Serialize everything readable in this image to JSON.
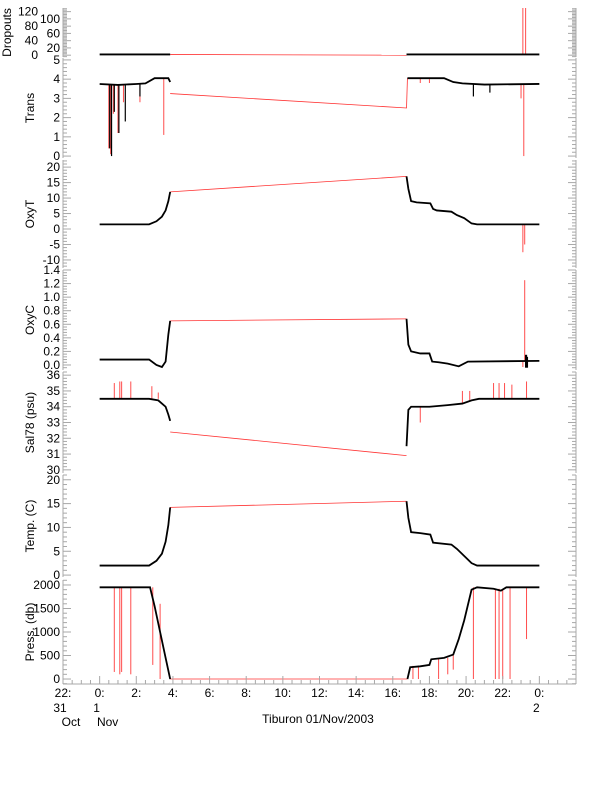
{
  "chart_data": {
    "type": "line",
    "title": "Tiburon 01/Nov/2003",
    "xlabel": "Tiburon 01/Nov/2003",
    "x_unit": "hours since 01/Nov/2003 00:00",
    "xlim": [
      -2,
      26
    ],
    "x_ticks": [
      {
        "value": -2,
        "label": "22:",
        "day": "31",
        "month": "Oct"
      },
      {
        "value": 0,
        "label": "0:",
        "day": "1",
        "month": "Nov"
      },
      {
        "value": 2,
        "label": "2:"
      },
      {
        "value": 4,
        "label": "4:"
      },
      {
        "value": 6,
        "label": "6:"
      },
      {
        "value": 8,
        "label": "8:"
      },
      {
        "value": 10,
        "label": "10:"
      },
      {
        "value": 12,
        "label": "12:"
      },
      {
        "value": 14,
        "label": "14:"
      },
      {
        "value": 16,
        "label": "16:"
      },
      {
        "value": 18,
        "label": "18:"
      },
      {
        "value": 20,
        "label": "20:"
      },
      {
        "value": 22,
        "label": "22:"
      },
      {
        "value": 24,
        "label": "0:",
        "day": "2"
      }
    ],
    "colors": {
      "good": "#000000",
      "flagged": "#ff0000",
      "axis": "#a8a8a8"
    },
    "panels": [
      {
        "ylabel": "Dropouts",
        "ylim": [
          -5,
          130
        ],
        "yticks": [
          0,
          20,
          40,
          60,
          80,
          100,
          120
        ],
        "good": [
          [
            0,
            2
          ],
          [
            3.85,
            2
          ],
          [
            16.75,
            2
          ],
          [
            24,
            2
          ]
        ],
        "interp": [
          [
            3.85,
            2
          ],
          [
            16.75,
            0
          ]
        ],
        "spikes": [
          [
            23.1,
            2,
            130
          ],
          [
            23.25,
            2,
            130
          ]
        ],
        "black_spikes": []
      },
      {
        "ylabel": "Trans",
        "ylim": [
          -0.1,
          5.1
        ],
        "yticks": [
          0,
          1,
          2,
          3,
          4,
          5
        ],
        "good": [
          [
            0,
            3.75
          ],
          [
            1,
            3.7
          ],
          [
            2,
            3.75
          ],
          [
            2.5,
            3.78
          ],
          [
            3.0,
            4.05
          ],
          [
            3.75,
            4.05
          ],
          [
            3.85,
            3.85
          ],
          [
            16.8,
            4.05
          ],
          [
            18.8,
            4.05
          ],
          [
            19.3,
            3.85
          ],
          [
            19.8,
            3.78
          ],
          [
            21,
            3.72
          ],
          [
            24,
            3.75
          ]
        ],
        "interp": [
          [
            3.85,
            3.25
          ],
          [
            16.75,
            2.5
          ],
          [
            16.8,
            4.05
          ]
        ],
        "spikes": [
          [
            0.5,
            3.7,
            0.4
          ],
          [
            0.6,
            3.7,
            0.1
          ],
          [
            0.75,
            3.7,
            2.2
          ],
          [
            1.0,
            3.7,
            1.2
          ],
          [
            1.3,
            3.7,
            2.8
          ],
          [
            3.5,
            4.05,
            1.1
          ],
          [
            2.2,
            3.75,
            2.8
          ],
          [
            23.15,
            3.7,
            0.0
          ],
          [
            23.0,
            3.7,
            3.0
          ],
          [
            17.5,
            4.05,
            3.8
          ],
          [
            18.0,
            4.0,
            3.8
          ]
        ],
        "black_spikes": [
          [
            0.55,
            3.7,
            0.4
          ],
          [
            0.65,
            3.7,
            0.0
          ],
          [
            0.8,
            3.7,
            2.3
          ],
          [
            1.05,
            3.7,
            1.2
          ],
          [
            1.4,
            3.7,
            1.8
          ],
          [
            2.2,
            3.75,
            3.1
          ],
          [
            20.4,
            3.75,
            3.1
          ],
          [
            21.3,
            3.7,
            3.3
          ]
        ]
      },
      {
        "ylabel": "OxyT",
        "ylim": [
          -12.6,
          22.3
        ],
        "yticks": [
          -10,
          -5,
          0,
          5,
          10,
          15,
          20
        ],
        "good": [
          [
            0,
            1.5
          ],
          [
            2.7,
            1.5
          ],
          [
            3.1,
            2.5
          ],
          [
            3.4,
            4
          ],
          [
            3.6,
            6
          ],
          [
            3.75,
            9
          ],
          [
            3.85,
            12
          ],
          [
            16.75,
            17
          ],
          [
            16.85,
            13
          ],
          [
            17.0,
            9
          ],
          [
            17.3,
            8.6
          ],
          [
            18.05,
            8.3
          ],
          [
            18.2,
            6.5
          ],
          [
            18.4,
            6.0
          ],
          [
            19.2,
            5.6
          ],
          [
            19.5,
            4.5
          ],
          [
            19.9,
            3.5
          ],
          [
            20.3,
            1.8
          ],
          [
            20.6,
            1.5
          ],
          [
            24,
            1.5
          ]
        ],
        "interp": [
          [
            3.85,
            12
          ],
          [
            16.75,
            17
          ]
        ],
        "spikes": [
          [
            23.1,
            1.5,
            -7.5
          ],
          [
            23.2,
            1.5,
            -5
          ]
        ],
        "black_spikes": []
      },
      {
        "ylabel": "OxyC",
        "ylim": [
          -0.074,
          1.4
        ],
        "yticks": [
          0.0,
          0.2,
          0.4,
          0.6,
          0.8,
          1.0,
          1.2,
          1.4
        ],
        "good": [
          [
            0,
            0.08
          ],
          [
            2.7,
            0.08
          ],
          [
            3.1,
            0.0
          ],
          [
            3.4,
            -0.03
          ],
          [
            3.6,
            0.05
          ],
          [
            3.75,
            0.45
          ],
          [
            3.85,
            0.65
          ],
          [
            16.75,
            0.68
          ],
          [
            16.85,
            0.3
          ],
          [
            17.0,
            0.2
          ],
          [
            17.5,
            0.17
          ],
          [
            18.0,
            0.17
          ],
          [
            18.15,
            0.05
          ],
          [
            18.5,
            0.04
          ],
          [
            19.0,
            0.02
          ],
          [
            19.6,
            -0.02
          ],
          [
            20.1,
            0.05
          ],
          [
            24,
            0.06
          ]
        ],
        "interp": [
          [
            3.85,
            0.65
          ],
          [
            16.75,
            0.68
          ]
        ],
        "spikes": [
          [
            23.2,
            0.06,
            1.25
          ],
          [
            23.1,
            0.06,
            -0.03
          ]
        ],
        "black_spikes": [
          [
            23.25,
            -0.04,
            0.15
          ],
          [
            23.3,
            -0.04,
            0.15
          ],
          [
            23.35,
            -0.04,
            0.12
          ]
        ]
      },
      {
        "ylabel": "Sal78 (psu)",
        "ylim": [
          29.8,
          36.2
        ],
        "yticks": [
          30,
          31,
          32,
          33,
          34,
          35,
          36
        ],
        "good": [
          [
            0,
            34.5
          ],
          [
            2.7,
            34.5
          ],
          [
            3.2,
            34.4
          ],
          [
            3.6,
            34.0
          ],
          [
            3.75,
            33.5
          ],
          [
            3.85,
            33.1
          ],
          [
            16.75,
            31.5
          ],
          [
            16.85,
            33.8
          ],
          [
            17.0,
            34.0
          ],
          [
            18.0,
            34.0
          ],
          [
            19.0,
            34.1
          ],
          [
            19.8,
            34.2
          ],
          [
            20.3,
            34.4
          ],
          [
            20.7,
            34.5
          ],
          [
            24,
            34.5
          ]
        ],
        "interp": [
          [
            3.85,
            32.4
          ],
          [
            16.75,
            30.9
          ]
        ],
        "spikes": [
          [
            0.8,
            34.5,
            35.5
          ],
          [
            1.1,
            34.5,
            35.6
          ],
          [
            1.2,
            34.5,
            35.6
          ],
          [
            1.7,
            34.5,
            35.6
          ],
          [
            2.85,
            34.5,
            35.3
          ],
          [
            3.2,
            34.5,
            34.9
          ],
          [
            17.5,
            34.0,
            33.0
          ],
          [
            19.8,
            34.2,
            35.0
          ],
          [
            20.2,
            34.4,
            35.0
          ],
          [
            21.5,
            34.5,
            35.5
          ],
          [
            21.8,
            34.5,
            35.5
          ],
          [
            22.1,
            34.5,
            35.5
          ],
          [
            22.5,
            34.5,
            35.4
          ],
          [
            23.3,
            34.5,
            35.6
          ]
        ],
        "black_spikes": []
      },
      {
        "ylabel": "Temp. (C)",
        "ylim": [
          -0.4,
          21
        ],
        "yticks": [
          0,
          5,
          10,
          15,
          20
        ],
        "good": [
          [
            0,
            2
          ],
          [
            2.7,
            2
          ],
          [
            3.1,
            3
          ],
          [
            3.4,
            4.5
          ],
          [
            3.6,
            7
          ],
          [
            3.75,
            10.5
          ],
          [
            3.85,
            14.2
          ],
          [
            16.75,
            15.5
          ],
          [
            16.85,
            12
          ],
          [
            17.0,
            9
          ],
          [
            17.5,
            8.8
          ],
          [
            18.05,
            8.5
          ],
          [
            18.2,
            6.8
          ],
          [
            19.2,
            6.4
          ],
          [
            19.5,
            5.5
          ],
          [
            19.9,
            4
          ],
          [
            20.3,
            2.5
          ],
          [
            20.6,
            2
          ],
          [
            24,
            2
          ]
        ],
        "interp": [
          [
            3.85,
            14.2
          ],
          [
            16.75,
            15.5
          ]
        ],
        "spikes": [],
        "black_spikes": []
      },
      {
        "ylabel": "Press. (db)",
        "ylim": [
          -106,
          2106
        ],
        "yticks": [
          0,
          500,
          1000,
          1500,
          2000
        ],
        "good": [
          [
            0,
            1950
          ],
          [
            2.75,
            1950
          ],
          [
            3.0,
            1550
          ],
          [
            3.3,
            1000
          ],
          [
            3.6,
            450
          ],
          [
            3.85,
            0
          ],
          [
            16.8,
            0
          ],
          [
            16.95,
            250
          ],
          [
            17.5,
            270
          ],
          [
            18.0,
            300
          ],
          [
            18.1,
            420
          ],
          [
            18.8,
            450
          ],
          [
            19.3,
            520
          ],
          [
            19.6,
            850
          ],
          [
            19.9,
            1250
          ],
          [
            20.3,
            1900
          ],
          [
            20.6,
            1950
          ],
          [
            21.5,
            1920
          ],
          [
            21.9,
            1880
          ],
          [
            22.2,
            1950
          ],
          [
            24,
            1950
          ]
        ],
        "interp": [
          [
            3.85,
            0
          ],
          [
            16.8,
            0
          ]
        ],
        "spikes": [
          [
            0.8,
            1950,
            150
          ],
          [
            1.1,
            1950,
            100
          ],
          [
            1.2,
            1950,
            150
          ],
          [
            1.7,
            1950,
            100
          ],
          [
            2.9,
            1950,
            300
          ],
          [
            3.3,
            1600,
            0
          ],
          [
            17.1,
            280,
            0
          ],
          [
            17.4,
            280,
            0
          ],
          [
            18.5,
            430,
            0
          ],
          [
            19.0,
            450,
            100
          ],
          [
            19.3,
            500,
            200
          ],
          [
            20.4,
            1950,
            0
          ],
          [
            21.6,
            1900,
            0
          ],
          [
            21.8,
            1920,
            0
          ],
          [
            22.0,
            1900,
            0
          ],
          [
            22.4,
            1950,
            0
          ],
          [
            23.3,
            1950,
            850
          ]
        ],
        "black_spikes": []
      }
    ]
  }
}
